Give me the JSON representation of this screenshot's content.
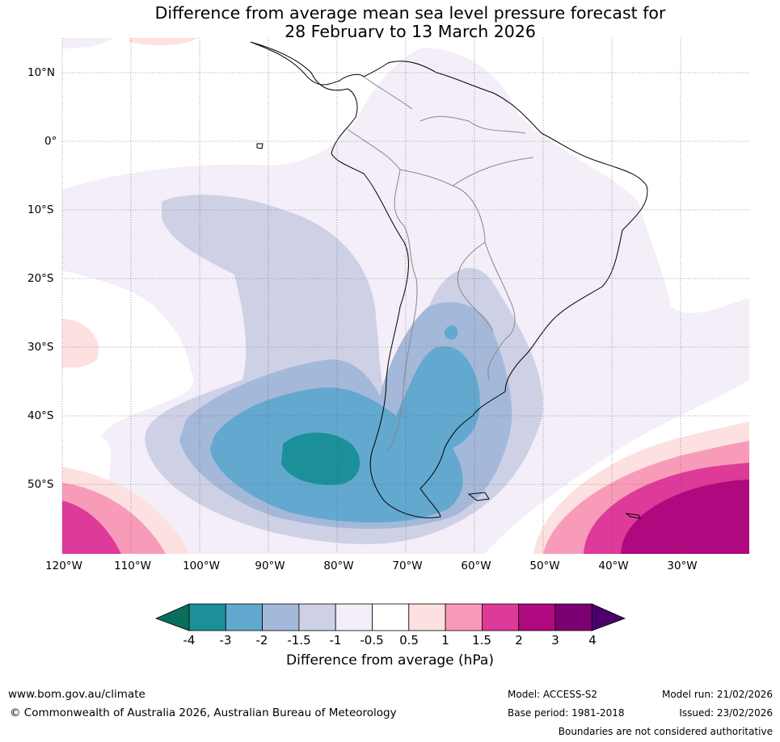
{
  "title": {
    "line1": "Difference from average mean sea level pressure forecast for",
    "line2": "28 February to 13 March 2026"
  },
  "map": {
    "region": "South America",
    "lat_labels": [
      "10°N",
      "0°",
      "10°S",
      "20°S",
      "30°S",
      "40°S",
      "50°S"
    ],
    "lon_labels": [
      "120°W",
      "110°W",
      "100°W",
      "90°W",
      "80°W",
      "70°W",
      "60°W",
      "50°W",
      "40°W",
      "30°W"
    ],
    "gridlines": "dotted"
  },
  "legend": {
    "tick_labels": [
      "-4",
      "-3",
      "-2",
      "-1.5",
      "-1",
      "-0.5",
      "0.5",
      "1",
      "1.5",
      "2",
      "3",
      "4"
    ],
    "label": "Difference from average (hPa)",
    "colors": {
      "under": "#0b6e5c",
      "bins": [
        "#1b9098",
        "#63a8cf",
        "#a4b8da",
        "#ced1e6",
        "#f3eef7",
        "#ffffff",
        "#fde0e0",
        "#f89bb8",
        "#de3a9a",
        "#b0087e",
        "#7b0072"
      ],
      "over": "#4a006a"
    }
  },
  "footer": {
    "website": "www.bom.gov.au/climate",
    "copyright": "© Commonwealth of Australia 2026, Australian Bureau of Meteorology",
    "model": "Model: ACCESS-S2",
    "base_period": "Base period: 1981-2018",
    "model_run": "Model run: 21/02/2026",
    "issued": "Issued: 23/02/2026",
    "disclaimer": "Boundaries are not considered authoritative"
  }
}
